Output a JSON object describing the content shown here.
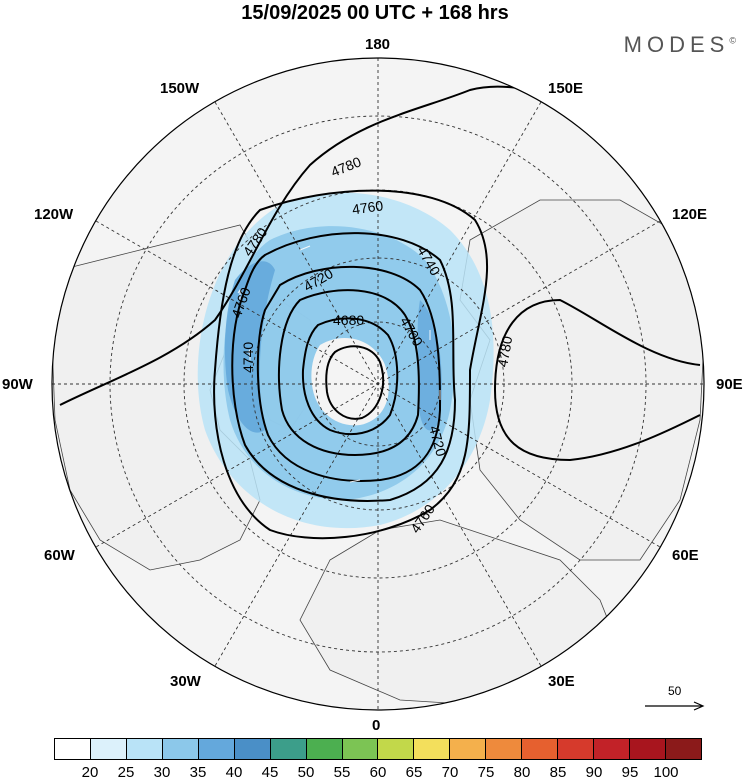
{
  "title": "15/09/2025  00 UTC  + 168 hrs",
  "brand": "MODES",
  "brand_mark": "©",
  "longitude_labels": [
    "180",
    "150E",
    "120E",
    "90E",
    "60E",
    "30E",
    "0",
    "30W",
    "60W",
    "90W",
    "120W",
    "150W"
  ],
  "contours": [
    {
      "value": 4680,
      "label": "4680"
    },
    {
      "value": 4700,
      "label": "4700"
    },
    {
      "value": 4720,
      "label": "4720"
    },
    {
      "value": 4740,
      "label": "4740"
    },
    {
      "value": 4760,
      "label": "4760"
    },
    {
      "value": 4780,
      "label": "4780"
    }
  ],
  "wind_reference": {
    "label": "50",
    "icon": "arrow-right-icon"
  },
  "colorbar": {
    "colors": [
      "#ffffff",
      "#dcf1fb",
      "#b9e3f7",
      "#8cc8ea",
      "#64a8dc",
      "#4a8fc7",
      "#3c9e8a",
      "#4caf50",
      "#7cc454",
      "#c2d84a",
      "#f3df5c",
      "#f4b04c",
      "#ee8a3c",
      "#e6602f",
      "#d63a2c",
      "#c22228",
      "#a8151e",
      "#8b1a1a"
    ],
    "ticks": [
      "20",
      "25",
      "30",
      "35",
      "40",
      "45",
      "50",
      "55",
      "60",
      "65",
      "70",
      "75",
      "80",
      "85",
      "90",
      "95",
      "100"
    ]
  }
}
